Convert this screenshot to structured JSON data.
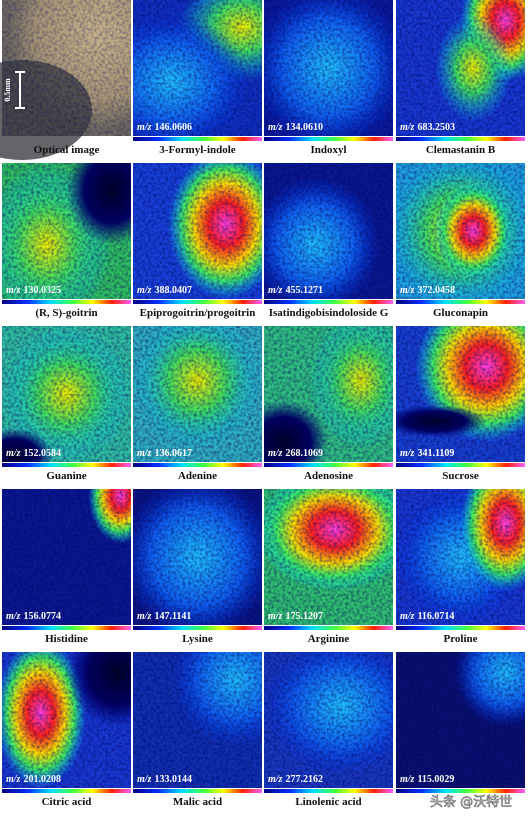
{
  "figure": {
    "optical": {
      "name": "Optical image",
      "scale": "0.5mm"
    },
    "mz_prefix": "m/z",
    "panels": [
      {
        "mz": "146.0606",
        "name": "3-Formyl-indole"
      },
      {
        "mz": "134.0610",
        "name": "Indoxyl"
      },
      {
        "mz": "683.2503",
        "name": "Clemastanin B"
      },
      {
        "mz": "130.0325",
        "name": "(R, S)-goitrin"
      },
      {
        "mz": "388.0407",
        "name": "Epiprogoitrin/progoitrin"
      },
      {
        "mz": "455.1271",
        "name": "Isatindigobisindoloside G"
      },
      {
        "mz": "372.0458",
        "name": "Gluconapin"
      },
      {
        "mz": "152.0584",
        "name": "Guanine"
      },
      {
        "mz": "136.0617",
        "name": "Adenine"
      },
      {
        "mz": "268.1069",
        "name": "Adenosine"
      },
      {
        "mz": "341.1109",
        "name": "Sucrose"
      },
      {
        "mz": "156.0774",
        "name": "Histidine"
      },
      {
        "mz": "147.1141",
        "name": "Lysine"
      },
      {
        "mz": "175.1207",
        "name": "Arginine"
      },
      {
        "mz": "116.0714",
        "name": "Proline"
      },
      {
        "mz": "201.0208",
        "name": "Citric acid"
      },
      {
        "mz": "133.0144",
        "name": "Malic acid"
      },
      {
        "mz": "277.2162",
        "name": "Linolenic acid"
      },
      {
        "mz": "115.0029",
        "name": ""
      }
    ]
  },
  "watermark": "头条 @沃特世"
}
